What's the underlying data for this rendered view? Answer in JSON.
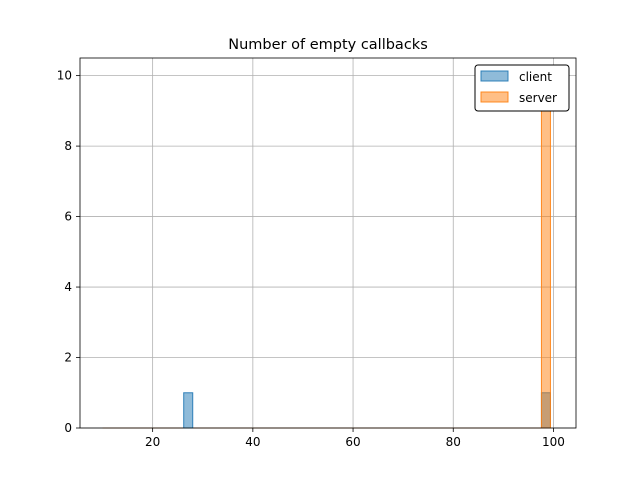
{
  "chart_data": {
    "type": "bar",
    "title": "Number of empty callbacks",
    "xlabel": "",
    "ylabel": "",
    "xlim": [
      5.5,
      104.5
    ],
    "ylim": [
      0,
      10.5
    ],
    "x_ticks": [
      20,
      40,
      60,
      80,
      100
    ],
    "y_ticks": [
      0,
      2,
      4,
      6,
      8,
      10
    ],
    "grid": true,
    "legend_position": "top-right",
    "bin_width": 1.8,
    "series": [
      {
        "name": "client",
        "color": "#1f77b4",
        "bins": [
          {
            "x0": 26.2,
            "x1": 28.0,
            "count": 1
          },
          {
            "x0": 97.6,
            "x1": 99.4,
            "count": 1
          }
        ]
      },
      {
        "name": "server",
        "color": "#ff7f0e",
        "bins": [
          {
            "x0": 97.6,
            "x1": 99.4,
            "count": 10
          }
        ]
      }
    ]
  }
}
